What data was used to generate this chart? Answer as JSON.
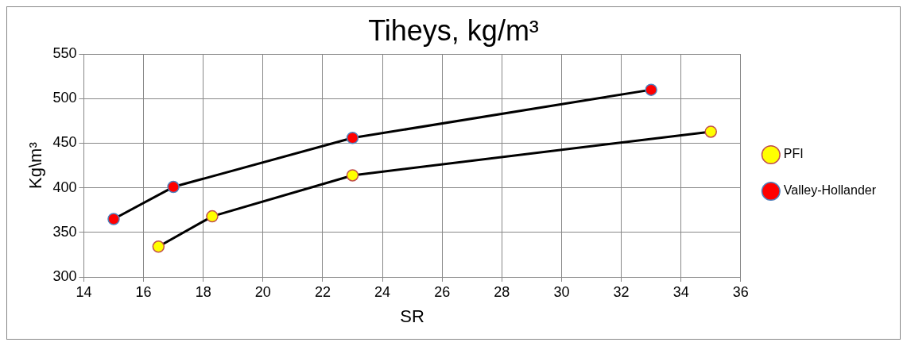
{
  "chart_data": {
    "type": "line",
    "title": "Tiheys, kg/m³",
    "xlabel": "SR",
    "ylabel": "Kg\\m³",
    "xlim": [
      14,
      36
    ],
    "xticks": [
      14,
      16,
      18,
      20,
      22,
      24,
      26,
      28,
      30,
      32,
      34,
      36
    ],
    "ylim": [
      300,
      550
    ],
    "yticks": [
      300,
      350,
      400,
      450,
      500,
      550
    ],
    "grid": true,
    "legend": "right",
    "marker": "circle",
    "line_style": "solid",
    "series": [
      {
        "name": "PFI",
        "color": "#000000",
        "colors": [
          "#ffff00",
          "#ffff00",
          "#ffff00",
          "#ffff00"
        ],
        "x": [
          16.5,
          18.3,
          23,
          35
        ],
        "values": [
          334,
          368,
          414,
          463
        ]
      },
      {
        "name": "Valley-Hollander",
        "color": "#000000",
        "colors": [
          "#ff0000",
          "#ff0000",
          "#ff0000",
          "#ff0000"
        ],
        "x": [
          15,
          17,
          23,
          33
        ],
        "values": [
          365,
          401,
          456,
          510
        ]
      }
    ]
  }
}
